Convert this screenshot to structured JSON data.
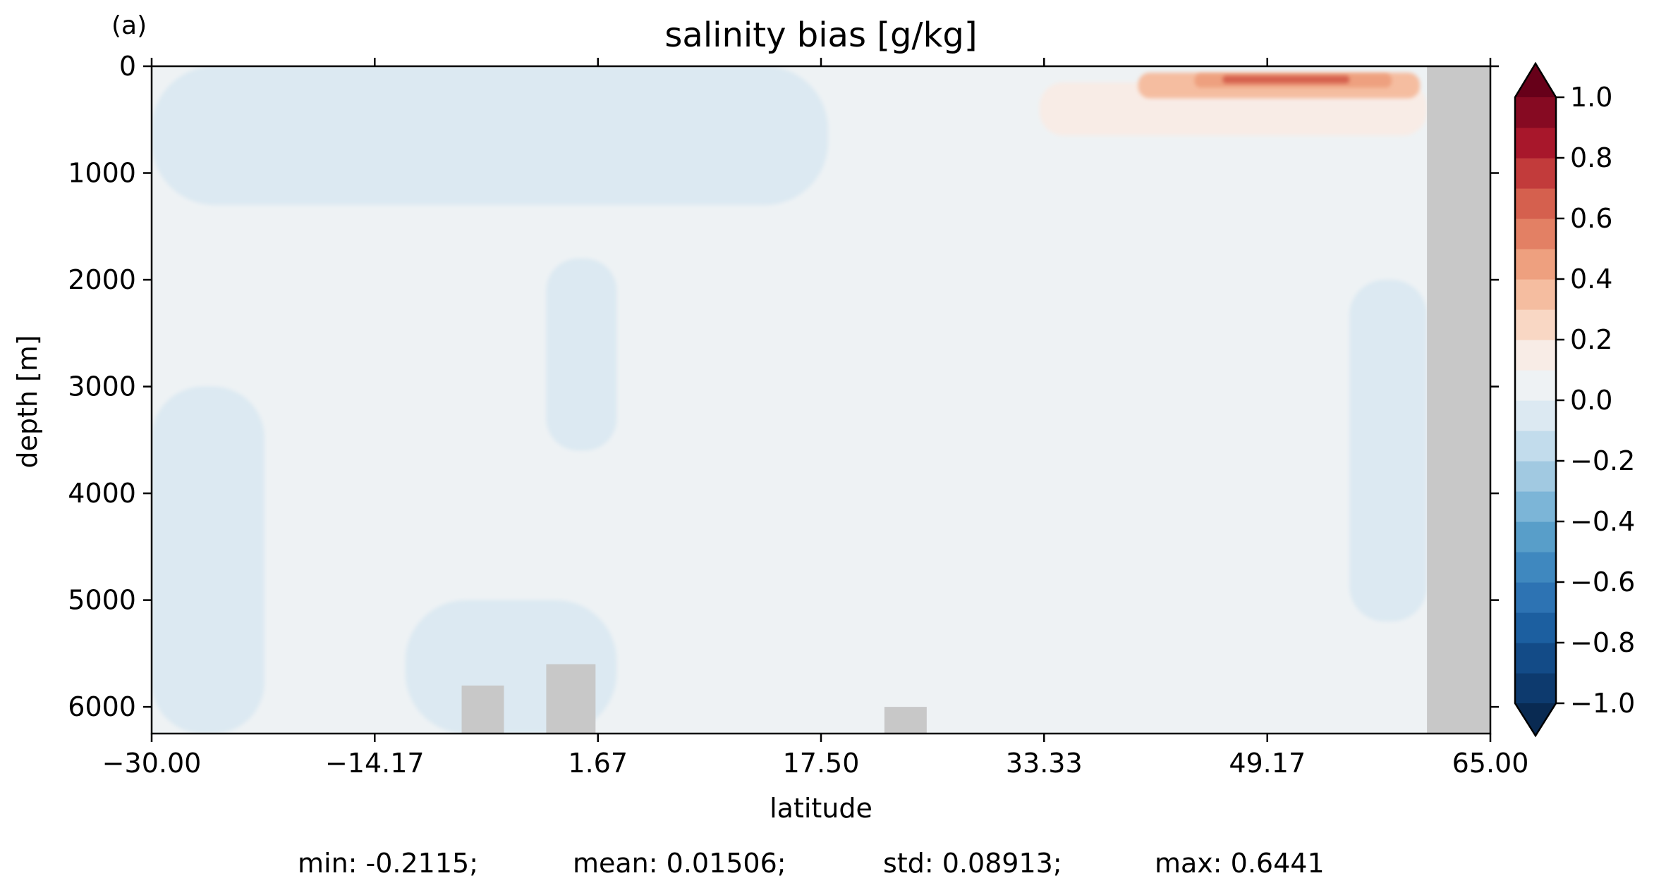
{
  "panel_label": "(a)",
  "stats_line": {
    "min": "min: -0.2115;",
    "mean": "mean: 0.01506;",
    "std": "std: 0.08913;",
    "max": "max: 0.6441"
  },
  "chart_data": {
    "type": "heatmap",
    "title": "salinity bias [g/kg]",
    "xlabel": "latitude",
    "ylabel": "depth [m]",
    "x_range": [
      -30.0,
      65.0
    ],
    "y_range": [
      0,
      6250
    ],
    "y_inverted": true,
    "x_ticks": [
      "−30.00",
      "−14.17",
      "1.67",
      "17.50",
      "33.33",
      "49.17",
      "65.00"
    ],
    "x_tick_values": [
      -30.0,
      -14.17,
      1.67,
      17.5,
      33.33,
      49.17,
      65.0
    ],
    "y_ticks": [
      "0",
      "1000",
      "2000",
      "3000",
      "4000",
      "5000",
      "6000"
    ],
    "y_tick_values": [
      0,
      1000,
      2000,
      3000,
      4000,
      5000,
      6000
    ],
    "colorbar": {
      "vmin": -1.0,
      "vmax": 1.0,
      "levels": 20,
      "extend": "both",
      "ticks": [
        "1.0",
        "0.8",
        "0.6",
        "0.4",
        "0.2",
        "0.0",
        "−0.2",
        "−0.4",
        "−0.6",
        "−0.8",
        "−1.0"
      ],
      "tick_values": [
        1.0,
        0.8,
        0.6,
        0.4,
        0.2,
        0.0,
        -0.2,
        -0.4,
        -0.6,
        -0.8,
        -1.0
      ],
      "colors": [
        "#0d3a6e",
        "#134b87",
        "#1c5fa0",
        "#2d73b3",
        "#3f88bf",
        "#589ec9",
        "#7cb5d7",
        "#a1c9e1",
        "#c2dcec",
        "#dce9f2",
        "#eef2f4",
        "#f8ece6",
        "#f9d7c4",
        "#f5bda0",
        "#eea07f",
        "#e38064",
        "#d5604e",
        "#c23b3b",
        "#a8172b",
        "#860a22"
      ],
      "over_color": "#670019",
      "under_color": "#092a52"
    },
    "background_value": 0.01,
    "land_color": "#c8c8c8",
    "features": [
      {
        "kind": "land",
        "lat": [
          60.5,
          65.0
        ],
        "depth": [
          0,
          6250
        ],
        "note": "continental wall"
      },
      {
        "kind": "land",
        "lat": [
          -2.0,
          1.5
        ],
        "depth": [
          5600,
          6250
        ]
      },
      {
        "kind": "land",
        "lat": [
          -8.0,
          -5.0
        ],
        "depth": [
          5800,
          6250
        ]
      },
      {
        "kind": "land",
        "lat": [
          22.0,
          25.0
        ],
        "depth": [
          6000,
          6250
        ]
      },
      {
        "kind": "bias",
        "lat": [
          -30.0,
          18.0
        ],
        "depth": [
          0,
          1300
        ],
        "value": -0.04
      },
      {
        "kind": "bias",
        "lat": [
          -30.0,
          -22.0
        ],
        "depth": [
          3000,
          6250
        ],
        "value": -0.04
      },
      {
        "kind": "bias",
        "lat": [
          -12.0,
          3.0
        ],
        "depth": [
          5000,
          6250
        ],
        "value": -0.04
      },
      {
        "kind": "bias",
        "lat": [
          -2.0,
          3.0
        ],
        "depth": [
          1800,
          3600
        ],
        "value": -0.04
      },
      {
        "kind": "bias",
        "lat": [
          55.0,
          60.5
        ],
        "depth": [
          2000,
          5200
        ],
        "value": -0.04
      },
      {
        "kind": "bias",
        "lat": [
          33.0,
          60.5
        ],
        "depth": [
          150,
          650
        ],
        "value": 0.15
      },
      {
        "kind": "bias",
        "lat": [
          40.0,
          60.0
        ],
        "depth": [
          60,
          300
        ],
        "value": 0.3
      },
      {
        "kind": "bias",
        "lat": [
          44.0,
          58.0
        ],
        "depth": [
          70,
          200
        ],
        "value": 0.45
      },
      {
        "kind": "bias",
        "lat": [
          46.0,
          55.0
        ],
        "depth": [
          90,
          160
        ],
        "value": 0.6
      }
    ]
  }
}
